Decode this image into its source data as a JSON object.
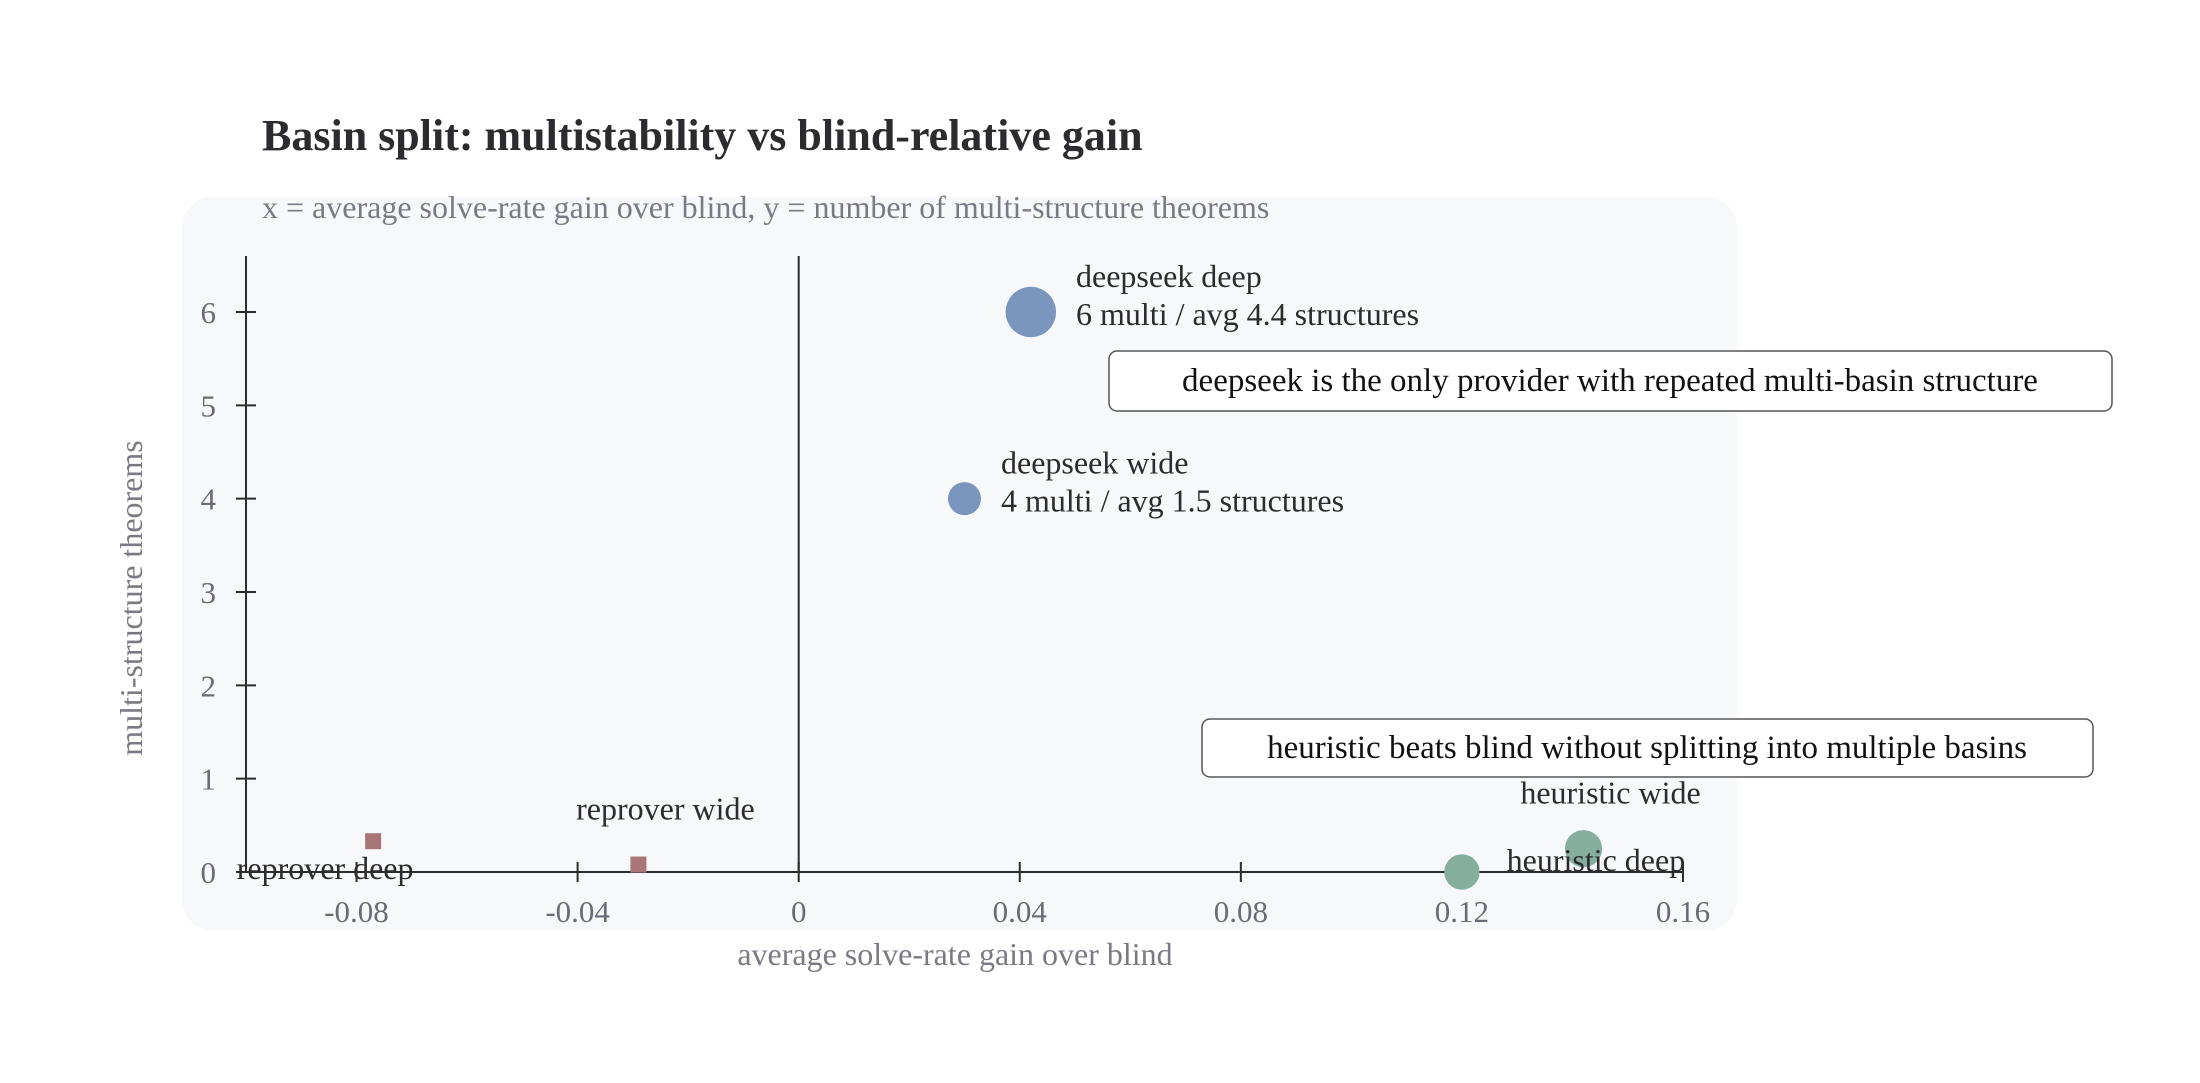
{
  "chart_data": {
    "type": "scatter",
    "title": "Basin split: multistability vs blind-relative gain",
    "subtitle": "x = average solve-rate gain over blind, y = number of multi-structure theorems",
    "xlabel": "average solve-rate gain over blind",
    "ylabel": "multi-structure theorems",
    "xlim": [
      -0.1,
      0.16
    ],
    "ylim": [
      0,
      6.6
    ],
    "xticks": [
      -0.08,
      -0.04,
      0,
      0.04,
      0.08,
      0.12,
      0.16
    ],
    "xtick_labels": [
      "-0.08",
      "-0.04",
      "0",
      "0.04",
      "0.08",
      "0.12",
      "0.16"
    ],
    "yticks": [
      0,
      1,
      2,
      3,
      4,
      5,
      6
    ],
    "ytick_labels": [
      "0",
      "1",
      "2",
      "3",
      "4",
      "5",
      "6"
    ],
    "grid": false,
    "colors": {
      "deepseek": "#7b96be",
      "heuristic": "#86ae9d",
      "reprover": "#a87676",
      "panel": "#f7f8fa",
      "axis": "#2b2b30"
    },
    "points": [
      {
        "provider": "deepseek",
        "label": "deepseek deep",
        "detail": "6 multi / avg 4.4 structures",
        "x": 0.042,
        "y": 6,
        "marker": "circle",
        "structures": 4.4,
        "label_pos": "right"
      },
      {
        "provider": "deepseek",
        "label": "deepseek wide",
        "detail": "4 multi / avg 1.5 structures",
        "x": 0.03,
        "y": 4,
        "marker": "circle",
        "structures": 1.5,
        "label_pos": "right"
      },
      {
        "provider": "heuristic",
        "label": "heuristic wide",
        "detail": "",
        "x": 0.142,
        "y": 0.25,
        "marker": "circle",
        "structures": 2.2,
        "label_pos": "above"
      },
      {
        "provider": "heuristic",
        "label": "heuristic deep",
        "detail": "",
        "x": 0.12,
        "y": 0,
        "marker": "circle",
        "structures": 1.9,
        "label_pos": "right"
      },
      {
        "provider": "reprover",
        "label": "reprover deep",
        "detail": "",
        "x": -0.077,
        "y": 0.33,
        "marker": "square",
        "label_pos": "left"
      },
      {
        "provider": "reprover",
        "label": "reprover wide",
        "detail": "",
        "x": -0.029,
        "y": 0.08,
        "marker": "square",
        "label_pos": "above"
      }
    ],
    "annotations": [
      "deepseek is the only provider with repeated multi-basin structure",
      "heuristic beats blind without splitting into multiple basins"
    ]
  }
}
